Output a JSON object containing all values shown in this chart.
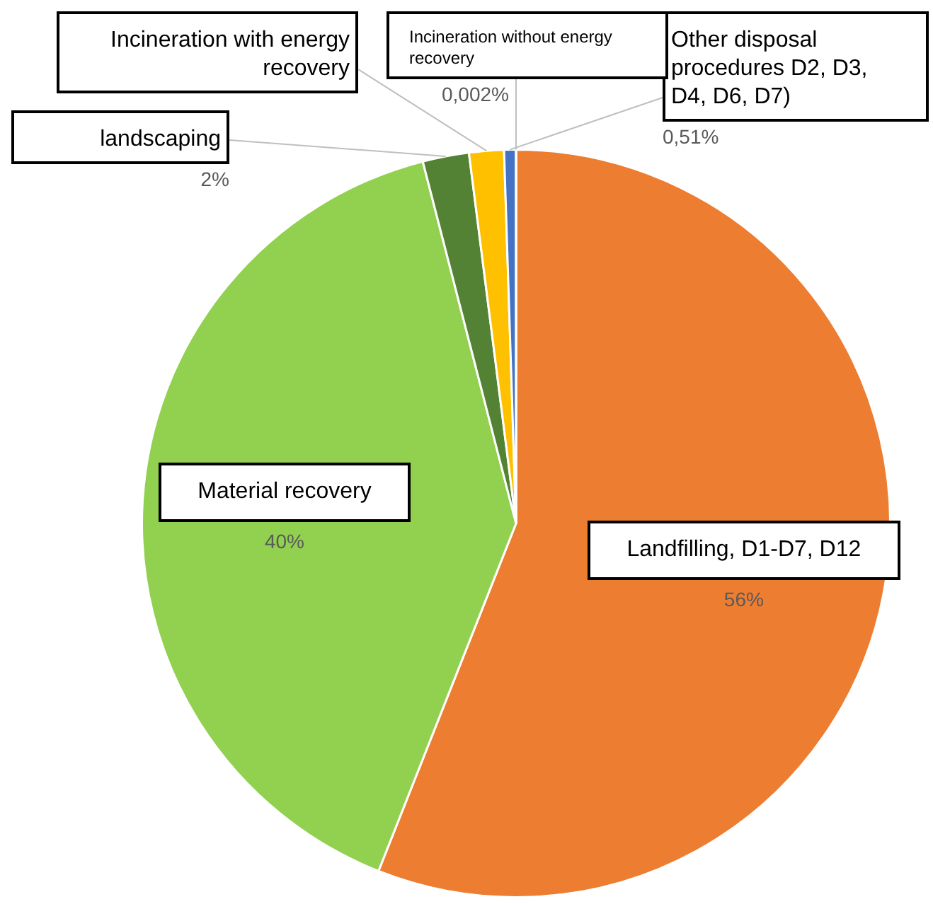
{
  "chart_data": {
    "type": "pie",
    "categories": [
      "Landfilling, D1-D7, D12",
      "Material recovery",
      "landscaping",
      "Incineration with energy recovery",
      "Other disposal procedures D2, D3, D4, D6, D7)",
      "Incineration without energy recovery"
    ],
    "values": [
      56,
      40,
      2,
      1.5,
      0.51,
      0.002
    ],
    "colors": [
      "#ed7d31",
      "#92d050",
      "#548235",
      "#ffc000",
      "#4472c4",
      "#a5a5a5"
    ],
    "value_labels": [
      "56%",
      "40%",
      "2%",
      null,
      "0,51%",
      "0,002%"
    ]
  }
}
